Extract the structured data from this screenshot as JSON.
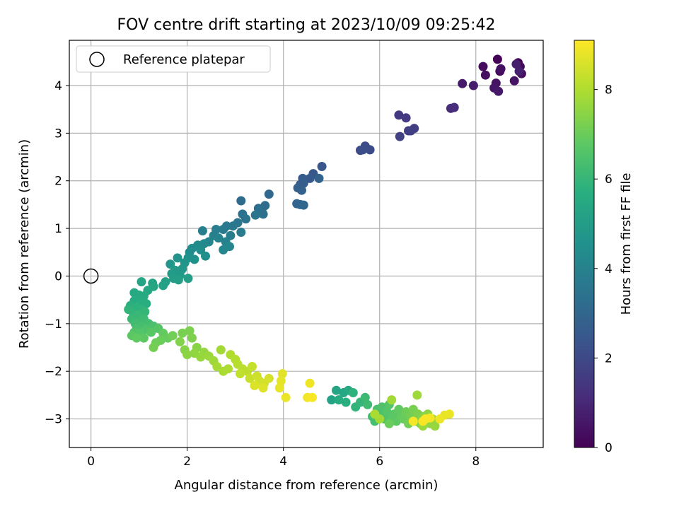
{
  "chart_data": {
    "type": "scatter",
    "title": "FOV centre drift starting at 2023/10/09 09:25:42",
    "xlabel": "Angular distance from reference (arcmin)",
    "ylabel": "Rotation from reference (arcmin)",
    "xlim": [
      -0.45,
      9.4
    ],
    "ylim": [
      -3.6,
      4.95
    ],
    "xticks": [
      "0",
      "2",
      "4",
      "6",
      "8"
    ],
    "yticks": [
      "−3",
      "−2",
      "−1",
      "0",
      "1",
      "2",
      "3",
      "4"
    ],
    "grid": true,
    "legend": {
      "position": "top-left",
      "entries": [
        "Reference platepar"
      ]
    },
    "reference_point": {
      "x": 0,
      "y": 0
    },
    "colorbar": {
      "label": "Hours from first FF file",
      "range": [
        0,
        9.1
      ],
      "ticks": [
        "0",
        "2",
        "4",
        "6",
        "8"
      ],
      "colormap": "viridis"
    },
    "points": [
      {
        "x": 8.45,
        "y": 4.55,
        "t": 0.05
      },
      {
        "x": 8.88,
        "y": 4.48,
        "t": 0.1
      },
      {
        "x": 8.5,
        "y": 4.3,
        "t": 0.15
      },
      {
        "x": 8.92,
        "y": 4.4,
        "t": 0.2
      },
      {
        "x": 8.15,
        "y": 4.4,
        "t": 0.25
      },
      {
        "x": 8.95,
        "y": 4.25,
        "t": 0.3
      },
      {
        "x": 8.2,
        "y": 4.22,
        "t": 0.35
      },
      {
        "x": 8.52,
        "y": 4.35,
        "t": 0.4
      },
      {
        "x": 8.42,
        "y": 4.05,
        "t": 0.45
      },
      {
        "x": 8.8,
        "y": 4.1,
        "t": 0.5
      },
      {
        "x": 8.38,
        "y": 3.95,
        "t": 0.55
      },
      {
        "x": 8.47,
        "y": 3.88,
        "t": 0.6
      },
      {
        "x": 7.72,
        "y": 4.04,
        "t": 0.65
      },
      {
        "x": 7.95,
        "y": 4.0,
        "t": 0.7
      },
      {
        "x": 8.84,
        "y": 4.45,
        "t": 0.75
      },
      {
        "x": 8.9,
        "y": 4.3,
        "t": 0.8
      },
      {
        "x": 7.48,
        "y": 3.52,
        "t": 1.1
      },
      {
        "x": 7.55,
        "y": 3.54,
        "t": 1.15
      },
      {
        "x": 6.4,
        "y": 3.38,
        "t": 1.5
      },
      {
        "x": 6.55,
        "y": 3.32,
        "t": 1.55
      },
      {
        "x": 6.6,
        "y": 3.05,
        "t": 1.6
      },
      {
        "x": 6.72,
        "y": 3.1,
        "t": 1.65
      },
      {
        "x": 6.65,
        "y": 3.05,
        "t": 1.7
      },
      {
        "x": 6.42,
        "y": 2.93,
        "t": 1.75
      },
      {
        "x": 5.6,
        "y": 2.64,
        "t": 2.0
      },
      {
        "x": 5.7,
        "y": 2.73,
        "t": 2.05
      },
      {
        "x": 5.8,
        "y": 2.65,
        "t": 2.1
      },
      {
        "x": 5.65,
        "y": 2.65,
        "t": 2.15
      },
      {
        "x": 4.8,
        "y": 2.3,
        "t": 2.45
      },
      {
        "x": 4.62,
        "y": 2.15,
        "t": 2.5
      },
      {
        "x": 4.55,
        "y": 2.05,
        "t": 2.55
      },
      {
        "x": 4.4,
        "y": 2.05,
        "t": 2.6
      },
      {
        "x": 4.35,
        "y": 1.92,
        "t": 2.65
      },
      {
        "x": 4.42,
        "y": 1.95,
        "t": 2.7
      },
      {
        "x": 4.3,
        "y": 1.85,
        "t": 2.75
      },
      {
        "x": 4.38,
        "y": 1.8,
        "t": 2.8
      },
      {
        "x": 4.74,
        "y": 2.05,
        "t": 2.85
      },
      {
        "x": 4.28,
        "y": 1.52,
        "t": 2.9
      },
      {
        "x": 4.35,
        "y": 1.5,
        "t": 2.95
      },
      {
        "x": 4.42,
        "y": 1.49,
        "t": 3.0
      },
      {
        "x": 3.7,
        "y": 1.72,
        "t": 3.1
      },
      {
        "x": 3.12,
        "y": 1.58,
        "t": 3.15
      },
      {
        "x": 3.62,
        "y": 1.48,
        "t": 3.2
      },
      {
        "x": 3.55,
        "y": 1.4,
        "t": 3.25
      },
      {
        "x": 3.48,
        "y": 1.42,
        "t": 3.3
      },
      {
        "x": 3.58,
        "y": 1.3,
        "t": 3.35
      },
      {
        "x": 3.15,
        "y": 1.3,
        "t": 3.4
      },
      {
        "x": 3.22,
        "y": 1.2,
        "t": 3.45
      },
      {
        "x": 3.42,
        "y": 1.28,
        "t": 3.5
      },
      {
        "x": 3.05,
        "y": 1.12,
        "t": 3.55
      },
      {
        "x": 2.95,
        "y": 1.05,
        "t": 3.6
      },
      {
        "x": 2.82,
        "y": 1.05,
        "t": 3.65
      },
      {
        "x": 2.75,
        "y": 0.98,
        "t": 3.7
      },
      {
        "x": 3.12,
        "y": 0.92,
        "t": 3.75
      },
      {
        "x": 2.9,
        "y": 0.85,
        "t": 3.8
      },
      {
        "x": 2.6,
        "y": 0.98,
        "t": 3.85
      },
      {
        "x": 2.32,
        "y": 0.95,
        "t": 3.9
      },
      {
        "x": 2.55,
        "y": 0.85,
        "t": 3.95
      },
      {
        "x": 2.65,
        "y": 0.8,
        "t": 4.0
      },
      {
        "x": 2.8,
        "y": 0.72,
        "t": 4.05
      },
      {
        "x": 2.45,
        "y": 0.72,
        "t": 4.1
      },
      {
        "x": 2.88,
        "y": 0.62,
        "t": 4.15
      },
      {
        "x": 2.75,
        "y": 0.55,
        "t": 4.2
      },
      {
        "x": 2.35,
        "y": 0.68,
        "t": 4.25
      },
      {
        "x": 2.22,
        "y": 0.65,
        "t": 4.3
      },
      {
        "x": 2.1,
        "y": 0.58,
        "t": 4.35
      },
      {
        "x": 2.05,
        "y": 0.5,
        "t": 4.4
      },
      {
        "x": 2.28,
        "y": 0.55,
        "t": 4.45
      },
      {
        "x": 2.38,
        "y": 0.42,
        "t": 4.5
      },
      {
        "x": 2.02,
        "y": 0.38,
        "t": 4.55
      },
      {
        "x": 2.15,
        "y": 0.35,
        "t": 4.6
      },
      {
        "x": 1.8,
        "y": 0.38,
        "t": 4.65
      },
      {
        "x": 1.95,
        "y": 0.28,
        "t": 4.7
      },
      {
        "x": 1.65,
        "y": 0.25,
        "t": 4.75
      },
      {
        "x": 1.9,
        "y": 0.15,
        "t": 4.8
      },
      {
        "x": 1.75,
        "y": 0.12,
        "t": 4.85
      },
      {
        "x": 1.85,
        "y": 0.02,
        "t": 4.9
      },
      {
        "x": 1.68,
        "y": 0.05,
        "t": 4.95
      },
      {
        "x": 1.72,
        "y": -0.05,
        "t": 5.0
      },
      {
        "x": 2.02,
        "y": -0.05,
        "t": 5.05
      },
      {
        "x": 1.82,
        "y": -0.08,
        "t": 5.1
      },
      {
        "x": 1.55,
        "y": -0.12,
        "t": 5.15
      },
      {
        "x": 1.5,
        "y": -0.2,
        "t": 5.2
      },
      {
        "x": 1.28,
        "y": -0.15,
        "t": 5.25
      },
      {
        "x": 1.3,
        "y": -0.22,
        "t": 5.3
      },
      {
        "x": 1.05,
        "y": -0.12,
        "t": 5.35
      },
      {
        "x": 1.18,
        "y": -0.3,
        "t": 5.4
      },
      {
        "x": 0.9,
        "y": -0.35,
        "t": 5.45
      },
      {
        "x": 1.0,
        "y": -0.4,
        "t": 5.5
      },
      {
        "x": 1.1,
        "y": -0.42,
        "t": 5.55
      },
      {
        "x": 0.9,
        "y": -0.52,
        "t": 5.6
      },
      {
        "x": 1.02,
        "y": -0.55,
        "t": 5.65
      },
      {
        "x": 1.15,
        "y": -0.58,
        "t": 5.7
      },
      {
        "x": 0.82,
        "y": -0.62,
        "t": 5.75
      },
      {
        "x": 0.95,
        "y": -0.65,
        "t": 5.8
      },
      {
        "x": 1.05,
        "y": -0.7,
        "t": 5.85
      },
      {
        "x": 0.78,
        "y": -0.7,
        "t": 5.9
      },
      {
        "x": 0.88,
        "y": -0.78,
        "t": 5.95
      },
      {
        "x": 1.12,
        "y": -0.75,
        "t": 6.0
      },
      {
        "x": 0.98,
        "y": -0.82,
        "t": 6.05
      },
      {
        "x": 0.85,
        "y": -0.9,
        "t": 6.1
      },
      {
        "x": 1.0,
        "y": -0.95,
        "t": 6.15
      },
      {
        "x": 1.1,
        "y": -0.9,
        "t": 6.2
      },
      {
        "x": 0.92,
        "y": -1.0,
        "t": 6.25
      },
      {
        "x": 1.2,
        "y": -1.0,
        "t": 6.3
      },
      {
        "x": 1.05,
        "y": -1.05,
        "t": 6.35
      },
      {
        "x": 0.95,
        "y": -1.1,
        "t": 6.4
      },
      {
        "x": 1.3,
        "y": -1.05,
        "t": 6.45
      },
      {
        "x": 1.15,
        "y": -1.12,
        "t": 6.5
      },
      {
        "x": 0.9,
        "y": -1.18,
        "t": 6.55
      },
      {
        "x": 1.02,
        "y": -1.2,
        "t": 6.6
      },
      {
        "x": 1.4,
        "y": -1.1,
        "t": 6.65
      },
      {
        "x": 1.25,
        "y": -1.18,
        "t": 6.7
      },
      {
        "x": 0.85,
        "y": -1.25,
        "t": 6.75
      },
      {
        "x": 1.1,
        "y": -1.3,
        "t": 6.8
      },
      {
        "x": 0.95,
        "y": -1.3,
        "t": 6.85
      },
      {
        "x": 1.5,
        "y": -1.2,
        "t": 6.9
      },
      {
        "x": 1.6,
        "y": -1.3,
        "t": 6.95
      },
      {
        "x": 1.45,
        "y": -1.35,
        "t": 7.0
      },
      {
        "x": 1.35,
        "y": -1.4,
        "t": 7.05
      },
      {
        "x": 1.7,
        "y": -1.25,
        "t": 7.1
      },
      {
        "x": 1.3,
        "y": -1.5,
        "t": 7.15
      },
      {
        "x": 1.9,
        "y": -1.2,
        "t": 7.2
      },
      {
        "x": 2.05,
        "y": -1.15,
        "t": 7.25
      },
      {
        "x": 2.1,
        "y": -1.3,
        "t": 7.3
      },
      {
        "x": 1.85,
        "y": -1.38,
        "t": 7.35
      },
      {
        "x": 1.95,
        "y": -1.55,
        "t": 7.4
      },
      {
        "x": 2.2,
        "y": -1.5,
        "t": 7.45
      },
      {
        "x": 2.0,
        "y": -1.65,
        "t": 7.5
      },
      {
        "x": 2.15,
        "y": -1.62,
        "t": 7.55
      },
      {
        "x": 2.35,
        "y": -1.6,
        "t": 7.6
      },
      {
        "x": 2.28,
        "y": -1.7,
        "t": 7.65
      },
      {
        "x": 2.45,
        "y": -1.68,
        "t": 7.7
      },
      {
        "x": 2.55,
        "y": -1.78,
        "t": 7.75
      },
      {
        "x": 2.7,
        "y": -1.55,
        "t": 7.8
      },
      {
        "x": 2.62,
        "y": -1.9,
        "t": 7.85
      },
      {
        "x": 2.75,
        "y": -2.0,
        "t": 7.9
      },
      {
        "x": 2.85,
        "y": -1.95,
        "t": 7.95
      },
      {
        "x": 2.9,
        "y": -1.65,
        "t": 8.0
      },
      {
        "x": 3.0,
        "y": -1.75,
        "t": 8.05
      },
      {
        "x": 3.05,
        "y": -1.85,
        "t": 8.1
      },
      {
        "x": 3.15,
        "y": -1.95,
        "t": 8.15
      },
      {
        "x": 3.25,
        "y": -2.0,
        "t": 8.2
      },
      {
        "x": 3.1,
        "y": -2.05,
        "t": 8.25
      },
      {
        "x": 3.35,
        "y": -1.9,
        "t": 8.3
      },
      {
        "x": 3.3,
        "y": -2.15,
        "t": 8.35
      },
      {
        "x": 3.45,
        "y": -2.1,
        "t": 8.4
      },
      {
        "x": 3.5,
        "y": -2.2,
        "t": 8.45
      },
      {
        "x": 3.6,
        "y": -2.25,
        "t": 8.5
      },
      {
        "x": 3.7,
        "y": -2.15,
        "t": 8.55
      },
      {
        "x": 3.4,
        "y": -2.3,
        "t": 8.6
      },
      {
        "x": 3.58,
        "y": -2.35,
        "t": 8.65
      },
      {
        "x": 3.98,
        "y": -2.05,
        "t": 8.7
      },
      {
        "x": 3.95,
        "y": -2.2,
        "t": 8.75
      },
      {
        "x": 3.92,
        "y": -2.35,
        "t": 8.8
      },
      {
        "x": 4.05,
        "y": -2.55,
        "t": 8.85
      },
      {
        "x": 4.55,
        "y": -2.25,
        "t": 8.9
      },
      {
        "x": 4.5,
        "y": -2.55,
        "t": 8.95
      },
      {
        "x": 4.6,
        "y": -2.55,
        "t": 9.0
      },
      {
        "x": 5.0,
        "y": -2.6,
        "t": 5.2
      },
      {
        "x": 5.1,
        "y": -2.4,
        "t": 5.3
      },
      {
        "x": 5.25,
        "y": -2.45,
        "t": 5.4
      },
      {
        "x": 5.35,
        "y": -2.4,
        "t": 5.5
      },
      {
        "x": 5.15,
        "y": -2.6,
        "t": 5.6
      },
      {
        "x": 5.3,
        "y": -2.65,
        "t": 5.7
      },
      {
        "x": 5.45,
        "y": -2.45,
        "t": 5.8
      },
      {
        "x": 5.5,
        "y": -2.75,
        "t": 5.9
      },
      {
        "x": 5.6,
        "y": -2.65,
        "t": 6.0
      },
      {
        "x": 5.7,
        "y": -2.55,
        "t": 6.1
      },
      {
        "x": 5.75,
        "y": -2.7,
        "t": 6.2
      },
      {
        "x": 5.85,
        "y": -2.95,
        "t": 6.3
      },
      {
        "x": 5.9,
        "y": -3.05,
        "t": 6.35
      },
      {
        "x": 5.95,
        "y": -2.8,
        "t": 6.4
      },
      {
        "x": 6.0,
        "y": -2.9,
        "t": 6.45
      },
      {
        "x": 6.05,
        "y": -2.75,
        "t": 6.5
      },
      {
        "x": 6.1,
        "y": -3.0,
        "t": 6.55
      },
      {
        "x": 6.15,
        "y": -2.85,
        "t": 6.6
      },
      {
        "x": 6.2,
        "y": -2.7,
        "t": 6.65
      },
      {
        "x": 6.25,
        "y": -3.0,
        "t": 6.7
      },
      {
        "x": 6.3,
        "y": -2.9,
        "t": 6.75
      },
      {
        "x": 6.35,
        "y": -3.05,
        "t": 6.8
      },
      {
        "x": 6.4,
        "y": -2.8,
        "t": 6.85
      },
      {
        "x": 6.45,
        "y": -2.95,
        "t": 6.9
      },
      {
        "x": 6.5,
        "y": -3.0,
        "t": 6.95
      },
      {
        "x": 6.2,
        "y": -3.1,
        "t": 7.0
      },
      {
        "x": 6.55,
        "y": -2.85,
        "t": 7.05
      },
      {
        "x": 6.6,
        "y": -3.1,
        "t": 7.1
      },
      {
        "x": 6.65,
        "y": -2.95,
        "t": 7.15
      },
      {
        "x": 6.7,
        "y": -2.8,
        "t": 7.2
      },
      {
        "x": 6.75,
        "y": -3.05,
        "t": 7.25
      },
      {
        "x": 6.8,
        "y": -2.9,
        "t": 7.3
      },
      {
        "x": 6.85,
        "y": -3.1,
        "t": 7.35
      },
      {
        "x": 6.9,
        "y": -2.95,
        "t": 7.4
      },
      {
        "x": 6.95,
        "y": -3.05,
        "t": 7.45
      },
      {
        "x": 7.0,
        "y": -2.9,
        "t": 7.5
      },
      {
        "x": 7.05,
        "y": -3.1,
        "t": 7.55
      },
      {
        "x": 7.1,
        "y": -3.0,
        "t": 7.6
      },
      {
        "x": 7.15,
        "y": -3.15,
        "t": 7.65
      },
      {
        "x": 6.9,
        "y": -3.15,
        "t": 7.7
      },
      {
        "x": 6.78,
        "y": -2.5,
        "t": 7.75
      },
      {
        "x": 6.25,
        "y": -2.6,
        "t": 7.8
      },
      {
        "x": 6.0,
        "y": -3.0,
        "t": 7.85
      },
      {
        "x": 5.9,
        "y": -2.9,
        "t": 7.9
      },
      {
        "x": 7.35,
        "y": -2.92,
        "t": 8.8
      },
      {
        "x": 7.45,
        "y": -2.9,
        "t": 8.85
      },
      {
        "x": 7.25,
        "y": -3.0,
        "t": 8.9
      },
      {
        "x": 7.05,
        "y": -2.98,
        "t": 8.95
      },
      {
        "x": 6.9,
        "y": -3.05,
        "t": 9.0
      },
      {
        "x": 6.95,
        "y": -3.0,
        "t": 9.05
      },
      {
        "x": 6.7,
        "y": -3.05,
        "t": 8.98
      }
    ]
  },
  "colors": {
    "grid": "#b0b0b0",
    "axes": "#000000",
    "reference_marker": "#000000",
    "legend_border": "#cccccc"
  }
}
